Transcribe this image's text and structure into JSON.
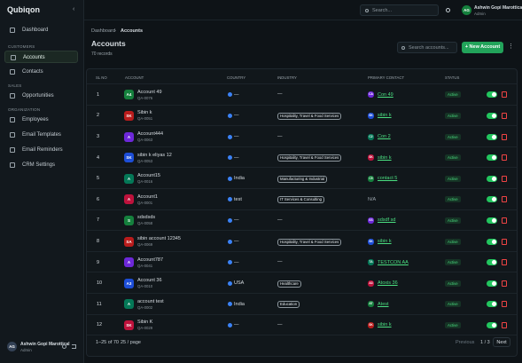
{
  "sidebar": {
    "logo": "Qubiqon",
    "dashboard": "Dashboard",
    "active": "Accounts",
    "groups": [
      {
        "title": "CUSTOMERS",
        "items": [
          "Accounts",
          "Contacts"
        ]
      },
      {
        "title": "SALES",
        "items": [
          "Opportunities"
        ]
      },
      {
        "title": "ORGANIZATION",
        "items": [
          "Employees",
          "Email Templates",
          "Email Reminders",
          "CRM Settings"
        ]
      }
    ],
    "user": {
      "initials": "AG",
      "name": "Ashwin Gopi Marottical",
      "role": "Admin"
    }
  },
  "topbar": {
    "search": "Search...",
    "user": {
      "initials": "AG",
      "name": "Ashwin Gopi Marottical",
      "role": "Admin"
    }
  },
  "header": {
    "breadcrumb": [
      "Dashboard",
      "Accounts"
    ],
    "title": "Accounts",
    "subtitle": "70 records",
    "search": "Search accounts...",
    "button": "+ New Account"
  },
  "table": {
    "columns": [
      "SL NO",
      "ACCOUNT",
      "COUNTRY",
      "INDUSTRY",
      "PRIMARY CONTACT",
      "STATUS"
    ],
    "empty": "—",
    "rows": [
      {
        "sl": 1,
        "initials": "A4",
        "name": "Account 49",
        "code": "QA-0076",
        "country": null,
        "industry": null,
        "contact_initials": "CA",
        "contact": "Con 49",
        "status": "Active"
      },
      {
        "sl": 2,
        "initials": "SK",
        "name": "Sibin k",
        "code": "QA-0051",
        "country": null,
        "industry": "Hospitality, Travel & Food Services",
        "contact_initials": "SK",
        "contact": "sibin k",
        "status": "Active"
      },
      {
        "sl": 3,
        "initials": "A",
        "name": "Account444",
        "code": "QA-0063",
        "country": null,
        "industry": null,
        "contact_initials": "C2",
        "contact": "Con 2",
        "status": "Active"
      },
      {
        "sl": 4,
        "initials": "SK",
        "name": "sibin k eliyas 12",
        "code": "QA-0053",
        "country": null,
        "industry": "Hospitality, Travel & Food Services",
        "contact_initials": "SK",
        "contact": "sibin k",
        "status": "Active"
      },
      {
        "sl": 5,
        "initials": "A",
        "name": "Account15",
        "code": "QA-0016",
        "country": "India",
        "industry": "Manufacturing & Industrial",
        "contact_initials": "C5",
        "contact": "contact 5",
        "status": "Active"
      },
      {
        "sl": 6,
        "initials": "A",
        "name": "Account1",
        "code": "QA-0001",
        "country": "test",
        "industry": "IT Services & Consulting",
        "contact_initials": null,
        "contact": "N/A",
        "status": "Active"
      },
      {
        "sl": 7,
        "initials": "S",
        "name": "sdsdsds",
        "code": "QA-0058",
        "country": null,
        "industry": null,
        "contact_initials": "SS",
        "contact": "sdsdf sd",
        "status": "Active"
      },
      {
        "sl": 8,
        "initials": "SA",
        "name": "sibin account 12345",
        "code": "QA-0069",
        "country": null,
        "industry": "Hospitality, Travel & Food Services",
        "contact_initials": "SK",
        "contact": "sibin k",
        "status": "Active"
      },
      {
        "sl": 9,
        "initials": "A",
        "name": "Account787",
        "code": "QA-0041",
        "country": null,
        "industry": null,
        "contact_initials": "TA",
        "contact": "TESTCON AA",
        "status": "Active"
      },
      {
        "sl": 10,
        "initials": "A3",
        "name": "Account 36",
        "code": "QA-0010",
        "country": "USA",
        "industry": "Healthcare",
        "contact_initials": "A3",
        "contact": "Atoxis 36",
        "status": "Active"
      },
      {
        "sl": 11,
        "initials": "A",
        "name": "account test",
        "code": "QA-0002",
        "country": "India",
        "industry": "Education",
        "contact_initials": "AT",
        "contact": "Atest",
        "status": "Active"
      },
      {
        "sl": 12,
        "initials": "SK",
        "name": "Sibin K",
        "code": "QA-0029",
        "country": null,
        "industry": null,
        "contact_initials": "SK",
        "contact": "sibin k",
        "status": "Active"
      }
    ]
  },
  "footer": {
    "range": "1–25 of 70",
    "per_page": "25 / page",
    "prev": "Previous",
    "page": "1 / 3",
    "next": "Next"
  }
}
